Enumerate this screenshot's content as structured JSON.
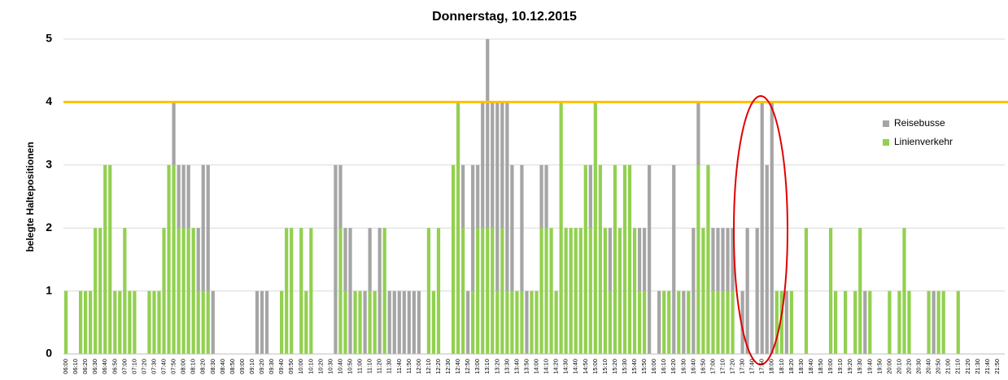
{
  "chart_data": {
    "type": "stacked_bar",
    "title": "Donnerstag, 10.12.2015",
    "y_label": "belegte Haltepositionen",
    "categories": [
      "06:00",
      null,
      "06:10",
      null,
      "06:20",
      null,
      "06:30",
      null,
      "06:40",
      null,
      "06:50",
      null,
      "07:00",
      null,
      "07:10",
      null,
      "07:20",
      null,
      "07:30",
      null,
      "07:40",
      null,
      "07:50",
      null,
      "08:00",
      null,
      "08:10",
      null,
      "08:20",
      null,
      "08:30",
      null,
      "08:40",
      null,
      "08:50",
      null,
      "09:00",
      null,
      "09:10",
      null,
      "09:20",
      null,
      "09:30",
      null,
      "09:40",
      null,
      "09:50",
      null,
      "10:00",
      null,
      "10:10",
      null,
      "10:20",
      null,
      "10:30",
      null,
      "10:40",
      null,
      "10:50",
      null,
      "11:00",
      null,
      "11:10",
      null,
      "11:20",
      null,
      "11:30",
      null,
      "11:40",
      null,
      "11:50",
      null,
      "12:00",
      null,
      "12:10",
      null,
      "12:20",
      null,
      "12:30",
      null,
      "12:40",
      null,
      "12:50",
      null,
      "13:00",
      null,
      "13:10",
      null,
      "13:20",
      null,
      "13:30",
      null,
      "13:40",
      null,
      "13:50",
      null,
      "14:00",
      null,
      "14:10",
      null,
      "14:20",
      null,
      "14:30",
      null,
      "14:40",
      null,
      "14:50",
      null,
      "15:00",
      null,
      "15:10",
      null,
      "15:20",
      null,
      "15:30",
      null,
      "15:40",
      null,
      "15:50",
      null,
      "16:00",
      null,
      "16:10",
      null,
      "16:20",
      null,
      "16:30",
      null,
      "16:40",
      null,
      "16:50",
      null,
      "17:00",
      null,
      "17:10",
      null,
      "17:20",
      null,
      "17:30",
      null,
      "17:40",
      null,
      "17:50",
      null,
      "18:00",
      null,
      "18:10",
      null,
      "18:20",
      null,
      "18:30",
      null,
      "18:40",
      null,
      "18:50",
      null,
      "19:00",
      null,
      "19:10",
      null,
      "19:20",
      null,
      "19:30",
      null,
      "19:40",
      null,
      "19:50",
      null,
      "20:00",
      null,
      "20:10",
      null,
      "20:20",
      null,
      "20:30",
      null,
      "20:40",
      null,
      "20:50",
      null,
      "21:00",
      null,
      "21:10",
      null,
      "21:20",
      null,
      "21:30",
      null,
      "21:40",
      null,
      "21:50",
      null
    ],
    "series": [
      {
        "name": "Reisebusse",
        "color": "#a5a5a5",
        "values": [
          0,
          0,
          0,
          0,
          0,
          0,
          0,
          0,
          0,
          0,
          0,
          0,
          0,
          0,
          0,
          0,
          0,
          0,
          0,
          0,
          0,
          0,
          1,
          1,
          1,
          1,
          0,
          1,
          2,
          2,
          1,
          0,
          0,
          0,
          0,
          0,
          0,
          0,
          0,
          1,
          1,
          1,
          0,
          0,
          0,
          0,
          0,
          0,
          0,
          0,
          0,
          0,
          0,
          0,
          0,
          3,
          1,
          1,
          2,
          0,
          0,
          1,
          1,
          0,
          2,
          0,
          1,
          1,
          1,
          1,
          1,
          1,
          1,
          0,
          0,
          0,
          0,
          0,
          0,
          0,
          0,
          1,
          1,
          2,
          1,
          2,
          3,
          2,
          3,
          2,
          3,
          2,
          0,
          2,
          1,
          0,
          0,
          1,
          1,
          0,
          0,
          0,
          0,
          0,
          0,
          0,
          0,
          1,
          0,
          0,
          0,
          1,
          0,
          0,
          0,
          0,
          0,
          1,
          1,
          3,
          0,
          1,
          0,
          0,
          3,
          0,
          1,
          0,
          2,
          1,
          0,
          0,
          1,
          1,
          1,
          1,
          1,
          0,
          1,
          2,
          0,
          2,
          4,
          3,
          4,
          0,
          0,
          1,
          0,
          0,
          0,
          0,
          0,
          0,
          0,
          0,
          0,
          0,
          0,
          0,
          0,
          0,
          0,
          1,
          0,
          0,
          0,
          0,
          0,
          0,
          0,
          0,
          0,
          0,
          0,
          0,
          0,
          1,
          0,
          0,
          0,
          0,
          0,
          0,
          0,
          0,
          0,
          0,
          0,
          0,
          0,
          0
        ]
      },
      {
        "name": "Linienverkehr",
        "color": "#92d050",
        "values": [
          1,
          0,
          0,
          1,
          1,
          1,
          2,
          2,
          3,
          3,
          1,
          1,
          2,
          1,
          1,
          0,
          0,
          1,
          1,
          1,
          2,
          3,
          3,
          2,
          2,
          2,
          2,
          1,
          1,
          1,
          0,
          0,
          0,
          0,
          0,
          0,
          0,
          0,
          0,
          0,
          0,
          0,
          0,
          0,
          1,
          2,
          2,
          0,
          2,
          1,
          2,
          0,
          0,
          0,
          0,
          0,
          2,
          1,
          0,
          1,
          1,
          0,
          1,
          1,
          0,
          2,
          0,
          0,
          0,
          0,
          0,
          0,
          0,
          0,
          2,
          1,
          2,
          0,
          0,
          3,
          4,
          2,
          0,
          1,
          2,
          2,
          2,
          2,
          1,
          2,
          1,
          1,
          1,
          1,
          0,
          1,
          1,
          2,
          2,
          2,
          1,
          4,
          2,
          2,
          2,
          2,
          3,
          2,
          4,
          3,
          2,
          1,
          3,
          2,
          3,
          3,
          2,
          1,
          1,
          0,
          0,
          0,
          1,
          1,
          0,
          1,
          0,
          1,
          0,
          3,
          2,
          3,
          1,
          1,
          1,
          1,
          1,
          0,
          0,
          0,
          0,
          0,
          0,
          0,
          0,
          1,
          1,
          0,
          1,
          0,
          0,
          2,
          0,
          0,
          0,
          0,
          2,
          1,
          0,
          1,
          0,
          1,
          2,
          0,
          1,
          0,
          0,
          0,
          1,
          0,
          1,
          2,
          1,
          0,
          0,
          0,
          1,
          0,
          1,
          1,
          0,
          0,
          1,
          0,
          0,
          0,
          0,
          0,
          0,
          0,
          0,
          0
        ]
      }
    ],
    "stack_order": [
      "Linienverkehr",
      "Reisebusse"
    ],
    "ylim": [
      0,
      5
    ],
    "yticks": [
      0,
      1,
      2,
      3,
      4,
      5
    ],
    "grid": true,
    "reference_line": {
      "value": 4,
      "color": "#ffc000"
    },
    "legend": "right"
  }
}
